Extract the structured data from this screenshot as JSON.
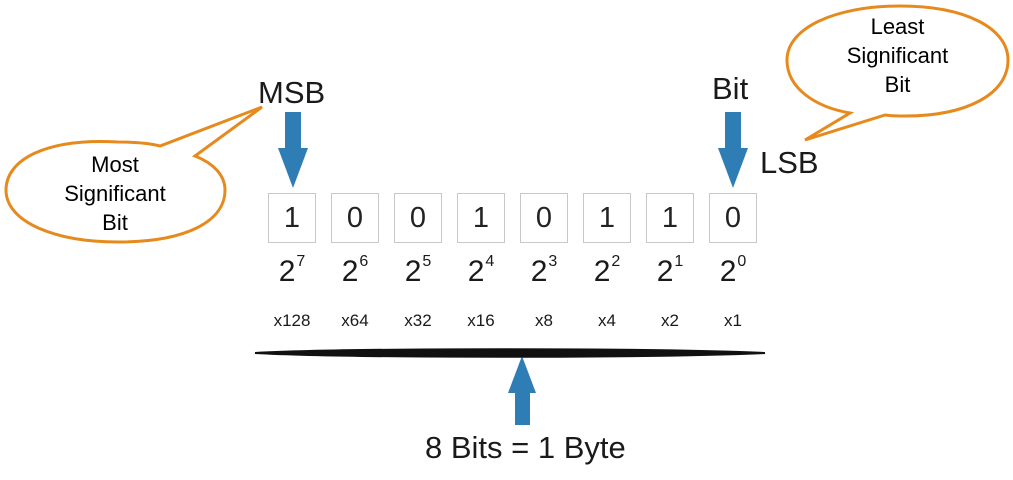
{
  "labels": {
    "msb": "MSB",
    "bit": "Bit",
    "lsb": "LSB",
    "byte_caption": "8 Bits = 1 Byte"
  },
  "bubbles": {
    "most_significant": [
      "Most",
      "Significant",
      "Bit"
    ],
    "least_significant": [
      "Least",
      "Significant",
      "Bit"
    ]
  },
  "bits": [
    "1",
    "0",
    "0",
    "1",
    "0",
    "1",
    "1",
    "0"
  ],
  "powers": [
    {
      "base": "2",
      "exp": "7"
    },
    {
      "base": "2",
      "exp": "6"
    },
    {
      "base": "2",
      "exp": "5"
    },
    {
      "base": "2",
      "exp": "4"
    },
    {
      "base": "2",
      "exp": "3"
    },
    {
      "base": "2",
      "exp": "2"
    },
    {
      "base": "2",
      "exp": "1"
    },
    {
      "base": "2",
      "exp": "0"
    }
  ],
  "multipliers": [
    "x128",
    "x64",
    "x32",
    "x16",
    "x8",
    "x4",
    "x2",
    "x1"
  ],
  "colors": {
    "arrow": "#2e7db5",
    "bubble_stroke": "#e68a1e",
    "bracket": "#111111",
    "box_border": "#c8c8c8"
  },
  "icons": {
    "msb_arrow": "arrow-down-icon",
    "lsb_arrow": "arrow-down-icon",
    "byte_arrow": "arrow-up-icon"
  }
}
